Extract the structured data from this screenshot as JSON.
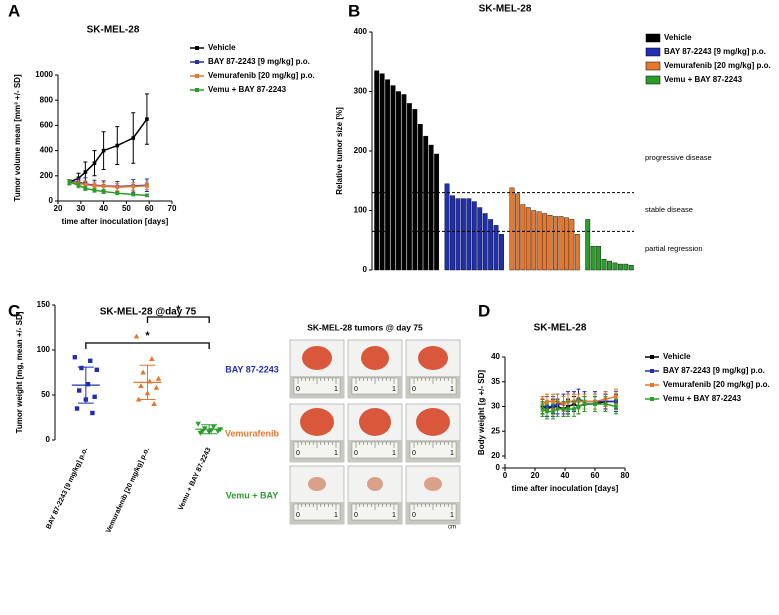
{
  "chart_data": [
    {
      "type": "line",
      "label": "A",
      "title": "SK-MEL-28",
      "xlabel": "time after inoculation [days]",
      "ylabel": "Tumor volume mean [mm³ +/- SD]",
      "x": [
        25,
        29,
        32,
        36,
        40,
        46,
        53,
        59
      ],
      "xlim": [
        20,
        70
      ],
      "xticks": [
        20,
        30,
        40,
        50,
        60,
        70
      ],
      "ylim": [
        0,
        1000
      ],
      "yticks": [
        0,
        200,
        400,
        600,
        800,
        1000
      ],
      "series": [
        {
          "name": "Vehicle",
          "color": "#000000",
          "values": [
            150,
            180,
            230,
            300,
            400,
            440,
            500,
            650
          ],
          "errors": [
            20,
            40,
            80,
            100,
            150,
            150,
            200,
            200
          ]
        },
        {
          "name": "BAY 87-2243 [9 mg/kg] p.o.",
          "color": "#1f2fb0",
          "values": [
            150,
            150,
            135,
            125,
            120,
            115,
            120,
            125
          ],
          "errors": [
            20,
            30,
            50,
            40,
            40,
            40,
            50,
            50
          ]
        },
        {
          "name": "Vemurafenib [20 mg/kg] p.o.",
          "color": "#e8772e",
          "values": [
            150,
            140,
            130,
            120,
            118,
            110,
            115,
            120
          ],
          "errors": [
            20,
            25,
            30,
            30,
            30,
            30,
            30,
            30
          ]
        },
        {
          "name": "Vemu + BAY 87-2243",
          "color": "#2a9d2a",
          "values": [
            150,
            125,
            100,
            85,
            75,
            62,
            52,
            45
          ],
          "errors": [
            20,
            20,
            15,
            15,
            15,
            10,
            10,
            10
          ]
        }
      ]
    },
    {
      "type": "bar",
      "label": "B",
      "title": "SK-MEL-28",
      "ylabel": "Relative tumor size [%]",
      "ylim": [
        0,
        400
      ],
      "yticks": [
        0,
        100,
        200,
        300,
        400
      ],
      "hlines": [
        130,
        65
      ],
      "annotations": [
        "progressive disease",
        "stable disease",
        "partial regression"
      ],
      "series": [
        {
          "name": "Vehicle",
          "color": "#000000",
          "values": [
            335,
            330,
            320,
            310,
            300,
            295,
            280,
            270,
            245,
            225,
            210,
            195
          ]
        },
        {
          "name": "BAY 87-2243 [9 mg/kg] p.o.",
          "color": "#1f2fb0",
          "values": [
            145,
            125,
            120,
            120,
            120,
            115,
            105,
            95,
            85,
            75,
            60
          ]
        },
        {
          "name": "Vemurafenib [20 mg/kg] p.o.",
          "color": "#e8772e",
          "values": [
            138,
            128,
            110,
            105,
            100,
            98,
            95,
            92,
            90,
            90,
            88,
            85,
            60
          ]
        },
        {
          "name": "Vemu + BAY 87-2243",
          "color": "#2a9d2a",
          "values": [
            85,
            40,
            40,
            18,
            15,
            12,
            10,
            10,
            8
          ]
        }
      ]
    },
    {
      "type": "dot",
      "label": "C",
      "title": "SK-MEL-28 @day 75",
      "ylabel": "Tumor weight [mg, mean +/- SD]",
      "categories": [
        "BAY 87-2243 [9 mg/kg] p.o.",
        "Vemurafenib [20 mg/kg] p.o.",
        "Vemu + BAY 87-2243"
      ],
      "ylim": [
        0,
        150
      ],
      "yticks": [
        0,
        50,
        100,
        150
      ],
      "groups": [
        {
          "color": "#1f2fb0",
          "values": [
            92,
            88,
            80,
            78,
            62,
            55,
            48,
            45,
            35,
            30
          ],
          "mean": 61,
          "sd": 20
        },
        {
          "color": "#e8772e",
          "values": [
            115,
            90,
            75,
            68,
            65,
            60,
            58,
            52,
            45,
            40
          ],
          "mean": 64,
          "sd": 19
        },
        {
          "color": "#2a9d2a",
          "values": [
            18,
            15,
            13,
            12,
            11,
            10,
            10,
            9,
            8
          ],
          "mean": 12,
          "sd": 5
        }
      ],
      "significance": [
        {
          "from": 0,
          "to": 2,
          "label": "*"
        },
        {
          "from": 1,
          "to": 2,
          "label": "*"
        }
      ]
    },
    {
      "type": "line",
      "label": "D",
      "title": "SK-MEL-28",
      "xlabel": "time after inoculation [days]",
      "ylabel": "Body weight [g +/- SD]",
      "x": [
        25,
        28,
        32,
        35,
        39,
        42,
        46,
        49,
        53,
        60,
        67,
        74
      ],
      "xlim": [
        0,
        80
      ],
      "xticks": [
        0,
        20,
        40,
        60,
        80
      ],
      "ylim": [
        0,
        40
      ],
      "ybreak": [
        0,
        20
      ],
      "yticks": [
        0,
        20,
        25,
        30,
        35,
        40
      ],
      "series": [
        {
          "name": "Vehicle",
          "color": "#000000",
          "values": [
            30,
            29.5,
            30,
            30,
            29.5,
            30,
            30.5,
            30,
            30.5,
            30.5,
            31,
            31
          ],
          "errors": [
            1.5,
            1.5,
            1.5,
            1.5,
            1.5,
            1.5,
            1.5,
            1.5,
            1.5,
            1.5,
            1.5,
            1.5
          ]
        },
        {
          "name": "BAY 87-2243 [9 mg/kg] p.o.",
          "color": "#1f2fb0",
          "values": [
            30,
            30,
            30,
            30.5,
            30.5,
            31,
            31,
            31.5,
            31,
            31,
            31,
            31
          ],
          "errors": [
            2,
            2,
            2,
            2,
            2,
            2,
            2,
            2,
            2,
            2,
            2,
            2
          ]
        },
        {
          "name": "Vemurafenib [20 mg/kg] p.o.",
          "color": "#e8772e",
          "values": [
            30.5,
            31,
            31,
            31,
            30.5,
            31,
            31,
            31,
            31,
            31,
            31.5,
            32
          ],
          "errors": [
            1.5,
            1.5,
            1.5,
            1.5,
            1.5,
            1.5,
            1.5,
            1.5,
            1.5,
            1.5,
            1.5,
            1.5
          ]
        },
        {
          "name": "Vemu + BAY 87-2243",
          "color": "#2a9d2a",
          "values": [
            29.5,
            29,
            29,
            29.5,
            29.5,
            29.5,
            29.5,
            30,
            30.5,
            30.5,
            30.5,
            30
          ],
          "errors": [
            1.5,
            1.5,
            1.5,
            1.5,
            1.5,
            1.5,
            1.5,
            1.5,
            1.5,
            1.5,
            1.5,
            1.5
          ]
        }
      ]
    }
  ],
  "photo_panel": {
    "title": "SK-MEL-28 tumors @ day 75",
    "rows": [
      {
        "label": "BAY 87-2243",
        "color": "#1f2fb0"
      },
      {
        "label": "Vemurafenib",
        "color": "#e8772e"
      },
      {
        "label": "Vemu + BAY",
        "color": "#2a9d2a"
      }
    ],
    "ruler_labels": [
      "0",
      "1",
      "cm"
    ]
  }
}
